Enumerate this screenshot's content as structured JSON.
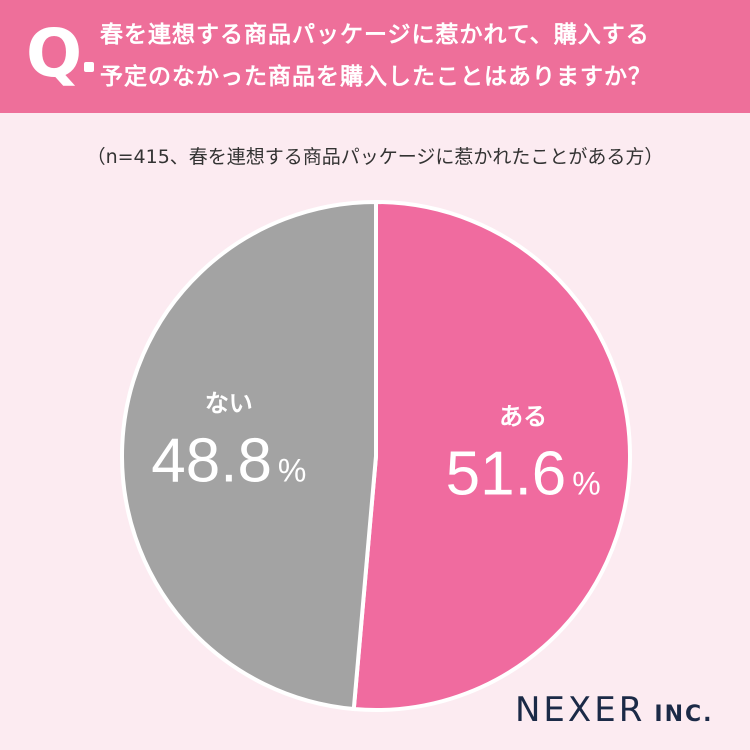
{
  "header": {
    "q_label": "Q",
    "question": "春を連想する商品パッケージに惹かれて、購入する\n予定のなかった商品を購入したことはありますか？"
  },
  "note": "（n=415、春を連想する商品パッケージに惹かれたことがある方）",
  "chart_data": {
    "type": "pie",
    "slices": [
      {
        "label": "ある",
        "value": 51.6,
        "display": "51.6",
        "color": "#f06b9f"
      },
      {
        "label": "ない",
        "value": 48.8,
        "display": "48.8",
        "color": "#a3a3a3"
      }
    ],
    "unit": "%"
  },
  "logo": {
    "main": "NEXER",
    "sub": "INC."
  }
}
